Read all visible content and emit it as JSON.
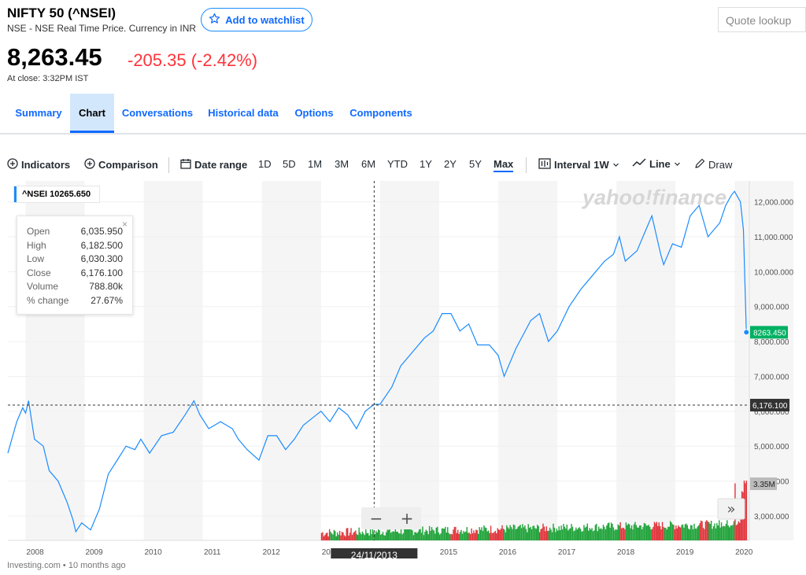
{
  "header": {
    "title": "NIFTY 50 (^NSEI)",
    "subtitle": "NSE - NSE Real Time Price. Currency in INR",
    "watchlist_label": "Add to watchlist",
    "quote_placeholder": "Quote lookup",
    "price": "8,263.45",
    "change": "-205.35 (-2.42%)",
    "close_time": "At close: 3:32PM IST"
  },
  "tabs": [
    "Summary",
    "Chart",
    "Conversations",
    "Historical data",
    "Options",
    "Components"
  ],
  "active_tab": "Chart",
  "toolbar": {
    "indicators": "Indicators",
    "comparison": "Comparison",
    "date_range": "Date range",
    "ranges": [
      "1D",
      "5D",
      "1M",
      "3M",
      "6M",
      "YTD",
      "1Y",
      "2Y",
      "5Y",
      "Max"
    ],
    "selected_range": "Max",
    "interval_label": "Interval",
    "interval_value": "1W",
    "line_label": "Line",
    "draw_label": "Draw"
  },
  "legend": {
    "symbol_value": "^NSEI 10265.650"
  },
  "ohlc": {
    "rows": [
      {
        "k": "Open",
        "v": "6,035.950"
      },
      {
        "k": "High",
        "v": "6,182.500"
      },
      {
        "k": "Low",
        "v": "6,030.300"
      },
      {
        "k": "Close",
        "v": "6,176.100"
      },
      {
        "k": "Volume",
        "v": "788.80k"
      },
      {
        "k": "% change",
        "v": "27.67%"
      }
    ]
  },
  "zoom": {
    "minus": "−",
    "plus": "+"
  },
  "scroll_label": "»",
  "crosshair_date": "24/11/2013",
  "crosshair_price_label": "6,176.100",
  "last_price_label": "8263.450",
  "volume_label": "3.35M",
  "watermark": "yahoo!finance",
  "footer": "Investing.com • 10 months ago",
  "colors": {
    "line": "#1a8cff",
    "vol_up": "#20a33a",
    "vol_down": "#e0353b",
    "last_tag": "#00b061"
  },
  "chart_data": {
    "type": "line",
    "series": [
      {
        "name": "^NSEI",
        "points": [
          [
            2007.7,
            4800
          ],
          [
            2007.85,
            5700
          ],
          [
            2007.95,
            6100
          ],
          [
            2008.0,
            5950
          ],
          [
            2008.05,
            6300
          ],
          [
            2008.15,
            5200
          ],
          [
            2008.3,
            5000
          ],
          [
            2008.4,
            4300
          ],
          [
            2008.55,
            4000
          ],
          [
            2008.7,
            3400
          ],
          [
            2008.8,
            2900
          ],
          [
            2008.85,
            2550
          ],
          [
            2008.95,
            2800
          ],
          [
            2009.1,
            2600
          ],
          [
            2009.25,
            3200
          ],
          [
            2009.4,
            4200
          ],
          [
            2009.55,
            4600
          ],
          [
            2009.7,
            5000
          ],
          [
            2009.85,
            4900
          ],
          [
            2009.95,
            5200
          ],
          [
            2010.1,
            4800
          ],
          [
            2010.3,
            5300
          ],
          [
            2010.5,
            5400
          ],
          [
            2010.7,
            5900
          ],
          [
            2010.85,
            6300
          ],
          [
            2010.95,
            5900
          ],
          [
            2011.1,
            5500
          ],
          [
            2011.3,
            5700
          ],
          [
            2011.5,
            5500
          ],
          [
            2011.6,
            5200
          ],
          [
            2011.75,
            4900
          ],
          [
            2011.95,
            4600
          ],
          [
            2012.1,
            5300
          ],
          [
            2012.25,
            5300
          ],
          [
            2012.4,
            4900
          ],
          [
            2012.55,
            5200
          ],
          [
            2012.7,
            5600
          ],
          [
            2012.85,
            5800
          ],
          [
            2013.0,
            6000
          ],
          [
            2013.15,
            5700
          ],
          [
            2013.3,
            6100
          ],
          [
            2013.45,
            5900
          ],
          [
            2013.6,
            5500
          ],
          [
            2013.75,
            6000
          ],
          [
            2013.9,
            6200
          ],
          [
            2014.0,
            6200
          ],
          [
            2014.2,
            6700
          ],
          [
            2014.35,
            7300
          ],
          [
            2014.55,
            7700
          ],
          [
            2014.75,
            8100
          ],
          [
            2014.9,
            8300
          ],
          [
            2015.05,
            8800
          ],
          [
            2015.2,
            8800
          ],
          [
            2015.35,
            8300
          ],
          [
            2015.5,
            8500
          ],
          [
            2015.65,
            7900
          ],
          [
            2015.85,
            7900
          ],
          [
            2016.0,
            7600
          ],
          [
            2016.1,
            7000
          ],
          [
            2016.3,
            7800
          ],
          [
            2016.55,
            8600
          ],
          [
            2016.7,
            8800
          ],
          [
            2016.85,
            8000
          ],
          [
            2017.0,
            8300
          ],
          [
            2017.2,
            9000
          ],
          [
            2017.4,
            9500
          ],
          [
            2017.6,
            9900
          ],
          [
            2017.8,
            10300
          ],
          [
            2017.95,
            10500
          ],
          [
            2018.05,
            11000
          ],
          [
            2018.15,
            10300
          ],
          [
            2018.35,
            10600
          ],
          [
            2018.5,
            11200
          ],
          [
            2018.6,
            11600
          ],
          [
            2018.75,
            10500
          ],
          [
            2018.8,
            10200
          ],
          [
            2018.95,
            10800
          ],
          [
            2019.1,
            10700
          ],
          [
            2019.25,
            11600
          ],
          [
            2019.4,
            11900
          ],
          [
            2019.55,
            11000
          ],
          [
            2019.75,
            11400
          ],
          [
            2019.85,
            11900
          ],
          [
            2019.95,
            12200
          ],
          [
            2020.0,
            12300
          ],
          [
            2020.1,
            12000
          ],
          [
            2020.15,
            11200
          ],
          [
            2020.2,
            8263
          ]
        ]
      }
    ],
    "x_tick_labels": [
      "2008",
      "2009",
      "2010",
      "2011",
      "2012",
      "2013",
      "2014",
      "2015",
      "2016",
      "2017",
      "2018",
      "2019",
      "2020"
    ],
    "x_ticks": [
      2008,
      2009,
      2010,
      2011,
      2012,
      2013,
      2014,
      2015,
      2016,
      2017,
      2018,
      2019,
      2020
    ],
    "y_tick_labels": [
      "3,000.000",
      "4,000.000",
      "5,000.000",
      "6,000.000",
      "7,000.000",
      "8,000.000",
      "9,000.000",
      "10,000.000",
      "11,000.000",
      "12,000.000"
    ],
    "y_ticks": [
      3000,
      4000,
      5000,
      6000,
      7000,
      8000,
      9000,
      10000,
      11000,
      12000
    ],
    "xlim": [
      2007.7,
      2020.25
    ],
    "ylim": [
      2300,
      12600
    ],
    "crosshair_x": 2013.9,
    "crosshair_y": 6176.1,
    "volume_start": 2013.0,
    "volume_max": 3.35
  }
}
